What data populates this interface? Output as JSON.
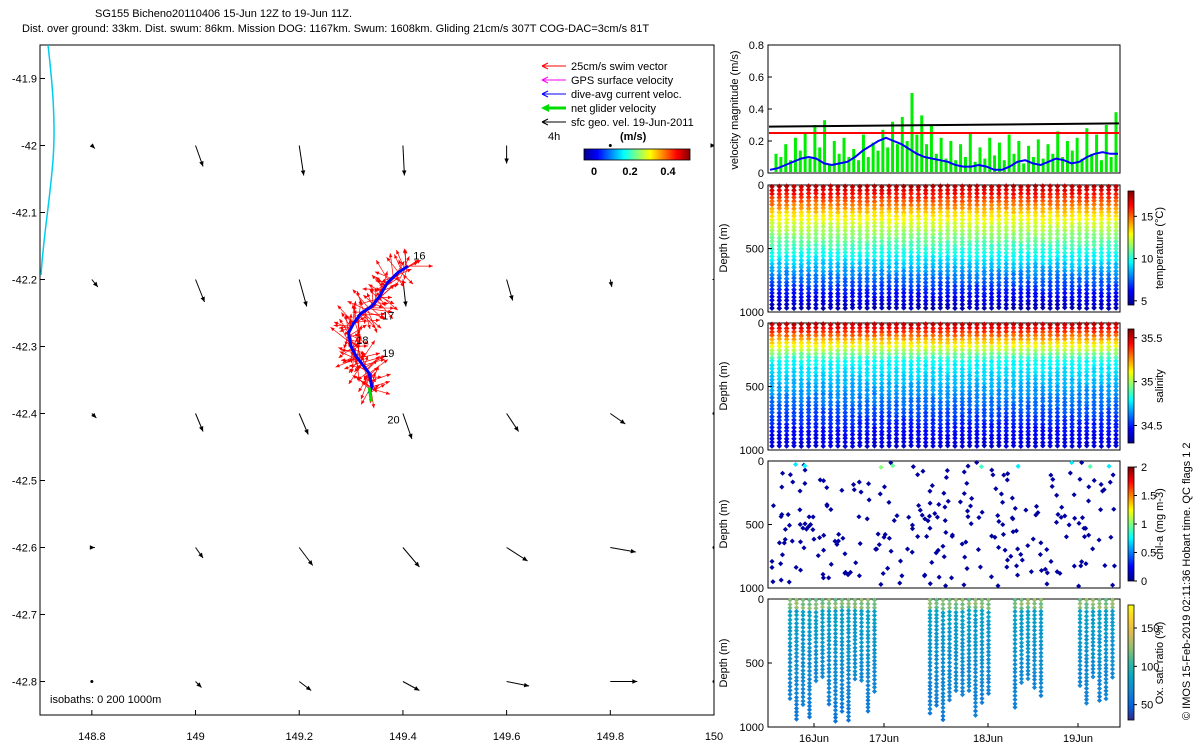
{
  "title": {
    "line1": "SG155 Bicheno20110406 15-Jun 12Z to 19-Jun 11Z.",
    "line2": "Dist. over ground: 33km. Dist. swum: 86km. Mission DOG: 1167km. Swum: 1608km. Gliding 21cm/s 307T COG-DAC=3cm/s 81T"
  },
  "side_text": "© IMOS 15-Feb-2019 02:11:36 Hobart time. QC flags 1  2",
  "colors": {
    "swim": "#ff0000",
    "gps": "#ff00ff",
    "dac": "#0000ff",
    "net": "#00dd00",
    "sfc": "#000000",
    "coast": "#00ccee",
    "parula": [
      "#352a87",
      "#0363e1",
      "#1485d4",
      "#06a7c6",
      "#38b99e",
      "#92bf73",
      "#d9ba56",
      "#fcce2e",
      "#f9fb0e"
    ],
    "jet": [
      "#00008f",
      "#0000ff",
      "#0080ff",
      "#00ffff",
      "#80ff80",
      "#ffff00",
      "#ff8000",
      "#ff0000",
      "#800000"
    ]
  },
  "chart_data": [
    {
      "type": "scatter",
      "xlim": [
        148.7,
        150.0
      ],
      "ylim": [
        -42.85,
        -41.85
      ],
      "xticks": [
        "148.8",
        "149",
        "149.2",
        "149.4",
        "149.6",
        "149.8",
        "150"
      ],
      "xtick_values": [
        148.8,
        149.0,
        149.2,
        149.4,
        149.6,
        149.8,
        150.0
      ],
      "yticks": [
        "-41.9",
        "-42",
        "-42.1",
        "-42.2",
        "-42.3",
        "-42.4",
        "-42.5",
        "-42.6",
        "-42.7",
        "-42.8"
      ],
      "ytick_values": [
        -41.9,
        -42.0,
        -42.1,
        -42.2,
        -42.3,
        -42.4,
        -42.5,
        -42.6,
        -42.7,
        -42.8
      ],
      "legend": {
        "entries": [
          "25cm/s swim vector",
          "GPS surface velocity",
          "dive-avg current veloc.",
          "net glider velocity",
          "sfc geo. vel. 19-Jun-2011"
        ],
        "scale_label": "4h",
        "colorbar_title": "(m/s)",
        "colorbar_ticks": [
          "0",
          "0.2",
          "0.4"
        ]
      },
      "isobaths_label": "isobaths: 0   200  1000m",
      "day_labels": [
        {
          "text": "16",
          "lon": 149.42,
          "lat": -42.17
        },
        {
          "text": "17",
          "lon": 149.36,
          "lat": -42.26
        },
        {
          "text": "18",
          "lon": 149.31,
          "lat": -42.296
        },
        {
          "text": "19",
          "lon": 149.36,
          "lat": -42.316
        },
        {
          "text": "20",
          "lon": 149.37,
          "lat": -42.415
        }
      ],
      "track": [
        [
          149.41,
          -42.18
        ],
        [
          149.39,
          -42.19
        ],
        [
          149.37,
          -42.205
        ],
        [
          149.355,
          -42.225
        ],
        [
          149.34,
          -42.24
        ],
        [
          149.32,
          -42.25
        ],
        [
          149.305,
          -42.265
        ],
        [
          149.295,
          -42.28
        ],
        [
          149.3,
          -42.3
        ],
        [
          149.31,
          -42.315
        ],
        [
          149.32,
          -42.325
        ],
        [
          149.335,
          -42.34
        ],
        [
          149.34,
          -42.36
        ],
        [
          149.335,
          -42.37
        ]
      ],
      "surface_vectors": [
        {
          "lon": 148.8,
          "lat": -42.0,
          "u": 0.02,
          "v": -0.02
        },
        {
          "lon": 149.0,
          "lat": -42.0,
          "u": 0.05,
          "v": -0.14
        },
        {
          "lon": 149.2,
          "lat": -42.0,
          "u": 0.03,
          "v": -0.2
        },
        {
          "lon": 149.4,
          "lat": -42.0,
          "u": 0.01,
          "v": -0.2
        },
        {
          "lon": 149.6,
          "lat": -42.0,
          "u": 0.0,
          "v": -0.12
        },
        {
          "lon": 149.8,
          "lat": -42.0,
          "u": 0.0,
          "v": 0.0
        },
        {
          "lon": 150.0,
          "lat": -42.0,
          "u": 0.01,
          "v": 0.0
        },
        {
          "lon": 148.8,
          "lat": -42.2,
          "u": 0.04,
          "v": -0.05
        },
        {
          "lon": 149.0,
          "lat": -42.2,
          "u": 0.06,
          "v": -0.15
        },
        {
          "lon": 149.2,
          "lat": -42.2,
          "u": 0.05,
          "v": -0.18
        },
        {
          "lon": 149.4,
          "lat": -42.2,
          "u": 0.02,
          "v": -0.18
        },
        {
          "lon": 149.6,
          "lat": -42.2,
          "u": 0.04,
          "v": -0.14
        },
        {
          "lon": 149.8,
          "lat": -42.2,
          "u": 0.01,
          "v": -0.05
        },
        {
          "lon": 150.0,
          "lat": -42.2,
          "u": -0.01,
          "v": 0.0
        },
        {
          "lon": 148.8,
          "lat": -42.4,
          "u": 0.03,
          "v": -0.03
        },
        {
          "lon": 149.0,
          "lat": -42.4,
          "u": 0.05,
          "v": -0.12
        },
        {
          "lon": 149.2,
          "lat": -42.4,
          "u": 0.06,
          "v": -0.14
        },
        {
          "lon": 149.4,
          "lat": -42.4,
          "u": 0.06,
          "v": -0.17
        },
        {
          "lon": 149.6,
          "lat": -42.4,
          "u": 0.08,
          "v": -0.12
        },
        {
          "lon": 149.8,
          "lat": -42.4,
          "u": 0.1,
          "v": -0.07
        },
        {
          "lon": 150.0,
          "lat": -42.4,
          "u": 0.0,
          "v": 0.0
        },
        {
          "lon": 148.8,
          "lat": -42.6,
          "u": 0.02,
          "v": 0.0
        },
        {
          "lon": 149.0,
          "lat": -42.6,
          "u": 0.05,
          "v": -0.07
        },
        {
          "lon": 149.2,
          "lat": -42.6,
          "u": 0.09,
          "v": -0.12
        },
        {
          "lon": 149.4,
          "lat": -42.6,
          "u": 0.11,
          "v": -0.13
        },
        {
          "lon": 149.6,
          "lat": -42.6,
          "u": 0.14,
          "v": -0.09
        },
        {
          "lon": 149.8,
          "lat": -42.6,
          "u": 0.17,
          "v": -0.03
        },
        {
          "lon": 150.0,
          "lat": -42.6,
          "u": 0.0,
          "v": 0.0
        },
        {
          "lon": 148.8,
          "lat": -42.8,
          "u": 0.0,
          "v": 0.0
        },
        {
          "lon": 149.0,
          "lat": -42.8,
          "u": 0.04,
          "v": -0.04
        },
        {
          "lon": 149.2,
          "lat": -42.8,
          "u": 0.08,
          "v": -0.06
        },
        {
          "lon": 149.4,
          "lat": -42.8,
          "u": 0.11,
          "v": -0.06
        },
        {
          "lon": 149.6,
          "lat": -42.8,
          "u": 0.15,
          "v": -0.03
        },
        {
          "lon": 149.8,
          "lat": -42.8,
          "u": 0.18,
          "v": 0.0
        },
        {
          "lon": 150.0,
          "lat": -42.8,
          "u": 0.0,
          "v": 0.0
        }
      ]
    },
    {
      "type": "bar",
      "ylabel": "velocity magnitude (m/s)",
      "ylim": [
        0,
        0.8
      ],
      "yticks": [
        "0",
        "0.2",
        "0.4",
        "0.6",
        "0.8"
      ],
      "net_velocity_bars": [
        0.12,
        0.1,
        0.18,
        0.08,
        0.22,
        0.14,
        0.25,
        0.09,
        0.3,
        0.16,
        0.33,
        0.05,
        0.2,
        0.12,
        0.22,
        0.1,
        0.15,
        0.08,
        0.24,
        0.1,
        0.19,
        0.14,
        0.27,
        0.16,
        0.32,
        0.18,
        0.35,
        0.2,
        0.5,
        0.24,
        0.36,
        0.18,
        0.3,
        0.12,
        0.22,
        0.09,
        0.2,
        0.08,
        0.18,
        0.1,
        0.25,
        0.07,
        0.16,
        0.09,
        0.22,
        0.11,
        0.19,
        0.08,
        0.24,
        0.12,
        0.2,
        0.06,
        0.17,
        0.1,
        0.21,
        0.09,
        0.18,
        0.12,
        0.26,
        0.1,
        0.2,
        0.14,
        0.22,
        0.09,
        0.28,
        0.12,
        0.24,
        0.08,
        0.3,
        0.1,
        0.38
      ],
      "dac_line": [
        0.02,
        0.03,
        0.05,
        0.07,
        0.09,
        0.1,
        0.09,
        0.06,
        0.05,
        0.06,
        0.07,
        0.1,
        0.14,
        0.17,
        0.2,
        0.22,
        0.2,
        0.18,
        0.15,
        0.12,
        0.1,
        0.09,
        0.08,
        0.07,
        0.05,
        0.04,
        0.04,
        0.05,
        0.04,
        0.02,
        0.02,
        0.04,
        0.07,
        0.08,
        0.06,
        0.05,
        0.07,
        0.09,
        0.08,
        0.06,
        0.07,
        0.1,
        0.12,
        0.13,
        0.12,
        0.12
      ],
      "red_line": [
        0.25,
        0.25
      ],
      "black_line": [
        0.29,
        0.31
      ]
    },
    {
      "type": "scatter",
      "ylabel": "Depth (m)",
      "colorbar_label": "temperature (°C)",
      "colormap": "jet",
      "clim": [
        4.5,
        18
      ],
      "cbar_ticks": [
        "5",
        "10",
        "15"
      ],
      "cbar_tick_values": [
        5,
        10,
        15
      ],
      "yticks": [
        "0",
        "500",
        "1000"
      ],
      "ylim": [
        1000,
        0
      ],
      "profile_count": 48
    },
    {
      "type": "scatter",
      "ylabel": "Depth (m)",
      "colorbar_label": "salinity",
      "colormap": "jet",
      "clim": [
        34.3,
        35.6
      ],
      "cbar_ticks": [
        "34.5",
        "35",
        "35.5"
      ],
      "cbar_tick_values": [
        34.5,
        35.0,
        35.5
      ],
      "yticks": [
        "0",
        "500",
        "1000"
      ],
      "ylim": [
        1000,
        0
      ],
      "profile_count": 48
    },
    {
      "type": "scatter",
      "ylabel": "Depth (m)",
      "colorbar_label": "chl-a (mg m-3)",
      "colormap": "jet",
      "clim": [
        0,
        2
      ],
      "cbar_ticks": [
        "0",
        "0.5",
        "1",
        "1.5",
        "2"
      ],
      "cbar_tick_values": [
        0,
        0.5,
        1.0,
        1.5,
        2.0
      ],
      "yticks": [
        "0",
        "500",
        "1000"
      ],
      "ylim": [
        1000,
        0
      ]
    },
    {
      "type": "scatter",
      "ylabel": "Depth (m)",
      "colorbar_label": "Ox. sat. ratio (%)",
      "colormap": "parula",
      "clim": [
        30,
        180
      ],
      "cbar_ticks": [
        "50",
        "100",
        "150"
      ],
      "cbar_tick_values": [
        50,
        100,
        150
      ],
      "yticks": [
        "0",
        "500",
        "1000"
      ],
      "ylim": [
        1000,
        0
      ],
      "xticks": [
        "16Jun",
        "17Jun",
        "18Jun",
        "19Jun"
      ]
    }
  ]
}
